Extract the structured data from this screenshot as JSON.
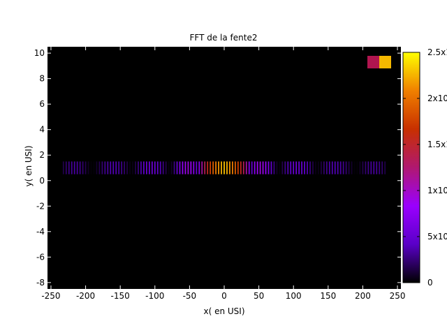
{
  "chart_data": {
    "type": "heatmap",
    "title": "FFT de la fente2",
    "xlabel": "x( en USI)",
    "ylabel": "y( en USI)",
    "xlim": [
      -255,
      255
    ],
    "ylim": [
      -8.5,
      10.5
    ],
    "xticks": [
      "-250",
      "-200",
      "-150",
      "-100",
      "-50",
      "0",
      "50",
      "100",
      "150",
      "200",
      "250"
    ],
    "xtick_values": [
      -250,
      -200,
      -150,
      -100,
      -50,
      0,
      50,
      100,
      150,
      200,
      250
    ],
    "yticks": [
      "-8",
      "-6",
      "-4",
      "-2",
      "0",
      "2",
      "4",
      "6",
      "8",
      "10"
    ],
    "ytick_values": [
      -8,
      -6,
      -4,
      -2,
      0,
      2,
      4,
      6,
      8,
      10
    ],
    "colorbar": {
      "range": [
        0,
        25000
      ],
      "tick_labels": [
        "0",
        "5x10",
        "1x10",
        "1.5x10",
        "2x10",
        "2.5x10"
      ],
      "tick_values": [
        0,
        5000,
        10000,
        15000,
        20000,
        25000
      ],
      "palette": [
        "#000000",
        "#5a00c8",
        "#9a00ff",
        "#b01870",
        "#c83000",
        "#f08000",
        "#ffff00"
      ]
    },
    "background_color": "#000000",
    "band": {
      "y_range": [
        0.5,
        1.5
      ],
      "x": [
        -232,
        -228,
        -224,
        -220,
        -216,
        -212,
        -208,
        -204,
        -200,
        -196,
        -192,
        -188,
        -184,
        -180,
        -176,
        -172,
        -168,
        -164,
        -160,
        -156,
        -152,
        -148,
        -144,
        -140,
        -136,
        -132,
        -128,
        -124,
        -120,
        -116,
        -112,
        -108,
        -104,
        -100,
        -96,
        -92,
        -88,
        -84,
        -80,
        -76,
        -72,
        -68,
        -64,
        -60,
        -56,
        -52,
        -48,
        -44,
        -40,
        -36,
        -32,
        -28,
        -24,
        -20,
        -16,
        -12,
        -8,
        -4,
        0,
        4,
        8,
        12,
        16,
        20,
        24,
        28,
        32,
        36,
        40,
        44,
        48,
        52,
        56,
        60,
        64,
        68,
        72,
        76,
        80,
        84,
        88,
        92,
        96,
        100,
        104,
        108,
        112,
        116,
        120,
        124,
        128,
        132,
        136,
        140,
        144,
        148,
        152,
        156,
        160,
        164,
        168,
        172,
        176,
        180,
        184,
        188,
        192,
        196,
        200,
        204,
        208,
        212,
        216,
        220,
        224,
        228,
        232
      ],
      "values": [
        1500,
        2200,
        2800,
        3200,
        3400,
        3300,
        2900,
        2300,
        1600,
        800,
        200,
        200,
        900,
        1600,
        2400,
        3000,
        3400,
        3700,
        3800,
        3700,
        3400,
        2900,
        2200,
        1400,
        500,
        500,
        1500,
        2600,
        3600,
        4400,
        5000,
        5300,
        5400,
        5100,
        4600,
        3800,
        2800,
        1600,
        400,
        900,
        2800,
        4800,
        6500,
        7900,
        8800,
        9100,
        8600,
        7300,
        5000,
        7000,
        11000,
        13500,
        15500,
        17500,
        19000,
        20500,
        21500,
        22500,
        23000,
        22500,
        21500,
        20500,
        19000,
        17500,
        15500,
        13500,
        11000,
        7000,
        5000,
        7300,
        8600,
        9100,
        8800,
        7900,
        6500,
        4800,
        2800,
        900,
        400,
        1600,
        2800,
        3800,
        4600,
        5100,
        5400,
        5300,
        5000,
        4400,
        3600,
        2600,
        1500,
        500,
        500,
        1400,
        2200,
        2900,
        3400,
        3700,
        3800,
        3700,
        3400,
        3000,
        2400,
        1600,
        900,
        200,
        200,
        800,
        1600,
        2300,
        2900,
        3300,
        3400,
        3200,
        2800,
        2200,
        1500
      ]
    },
    "legend": {
      "placement": "top-right",
      "swatch_colors": [
        "#b0154f",
        "#f5b800"
      ]
    },
    "grid": false
  }
}
